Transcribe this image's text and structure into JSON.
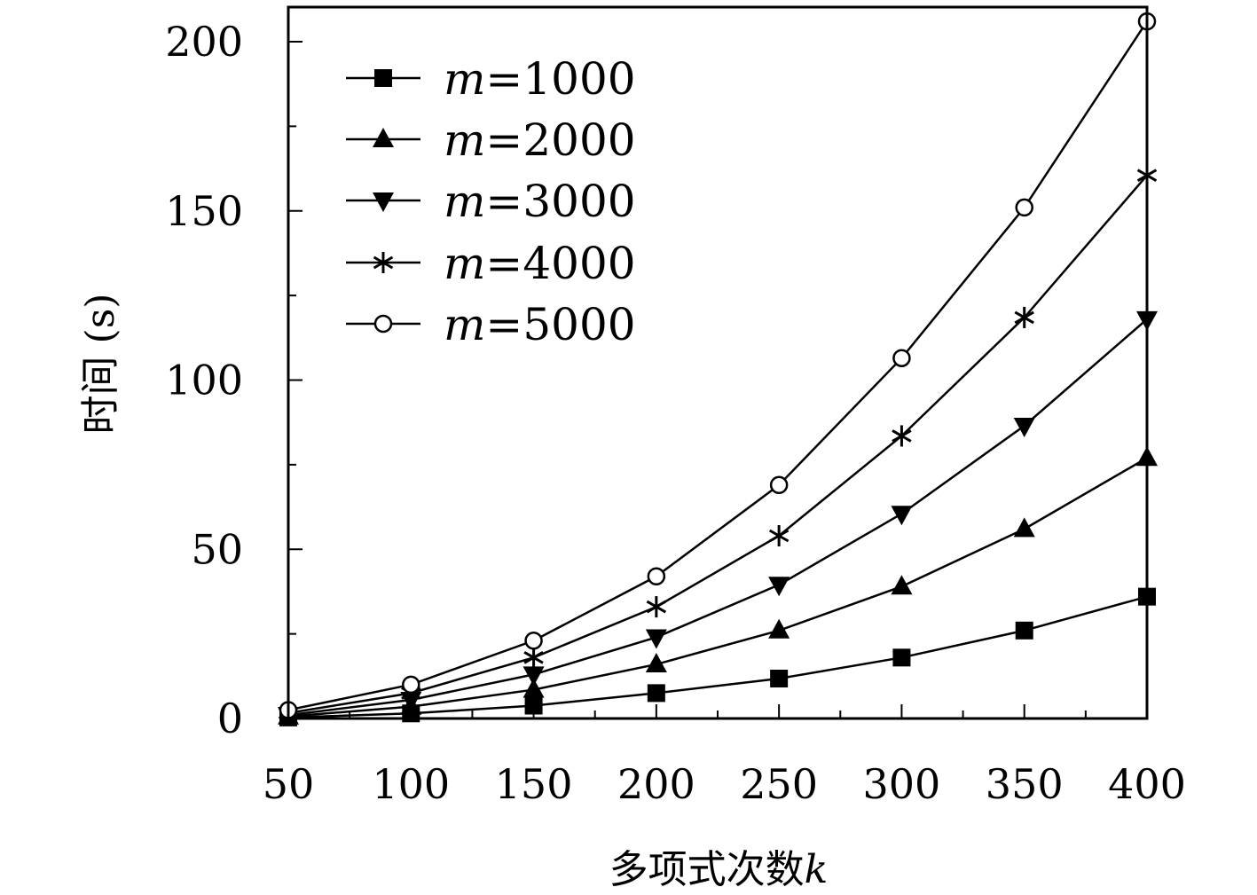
{
  "chart_data": {
    "type": "line",
    "x": [
      50,
      100,
      150,
      200,
      250,
      300,
      350,
      400
    ],
    "xlim": [
      50,
      400
    ],
    "ylim": [
      0,
      210
    ],
    "xticks": [
      "50",
      "100",
      "150",
      "200",
      "250",
      "300",
      "350",
      "400"
    ],
    "yticks": [
      "0",
      "50",
      "100",
      "150",
      "200"
    ],
    "xlabel": "多项式次数",
    "xlabel_var": "k",
    "ylabel": "时间 (s)",
    "legend_position": "top-left",
    "grid": false,
    "series": [
      {
        "name": "m=1000",
        "var": "m",
        "value": "=1000",
        "marker": "square",
        "values": [
          0.3,
          1.5,
          3.8,
          7.5,
          11.8,
          18.0,
          26.0,
          36.0
        ]
      },
      {
        "name": "m=2000",
        "var": "m",
        "value": "=2000",
        "marker": "triangle-up",
        "values": [
          0.6,
          3.5,
          8.5,
          16.0,
          26.0,
          39.0,
          56.0,
          77.0
        ]
      },
      {
        "name": "m=3000",
        "var": "m",
        "value": "=3000",
        "marker": "triangle-down",
        "values": [
          1.0,
          5.5,
          13.0,
          24.0,
          39.5,
          60.5,
          86.5,
          118.0
        ]
      },
      {
        "name": "m=4000",
        "var": "m",
        "value": "=4000",
        "marker": "asterisk",
        "values": [
          1.6,
          7.5,
          18.0,
          33.0,
          54.0,
          83.5,
          118.5,
          160.5
        ]
      },
      {
        "name": "m=5000",
        "var": "m",
        "value": "=5000",
        "marker": "circle-open",
        "values": [
          2.5,
          10.0,
          23.0,
          42.0,
          69.0,
          106.5,
          151.0,
          206.0
        ]
      }
    ]
  }
}
